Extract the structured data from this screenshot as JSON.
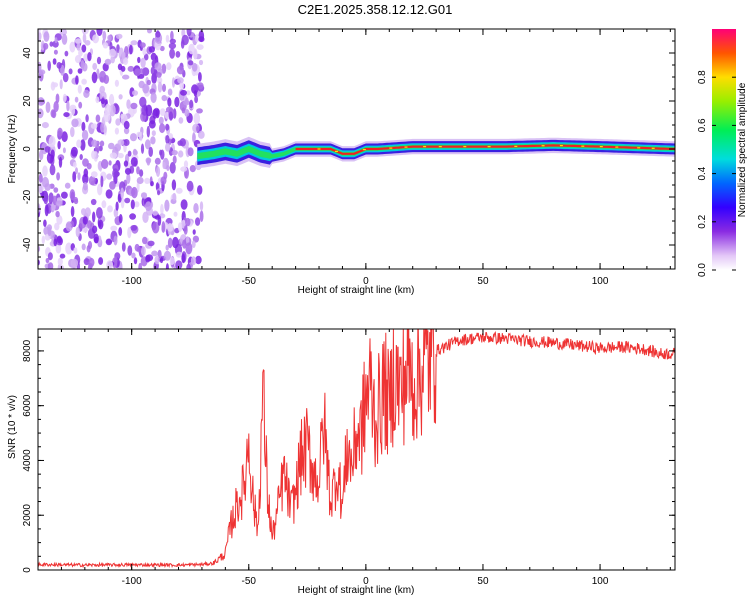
{
  "title": "C2E1.2025.358.12.12.G01",
  "chart_data": [
    {
      "type": "heatmap",
      "xlabel": "Height of straight line (km)",
      "ylabel": "Frequency (Hz)",
      "xlim": [
        -140,
        132
      ],
      "ylim": [
        -50,
        50
      ],
      "xticks": [
        -100,
        -50,
        0,
        50,
        100
      ],
      "yticks": [
        -40,
        -20,
        0,
        20,
        40
      ],
      "noise_region_x": [
        -140,
        -70
      ],
      "signal_trace": {
        "x": [
          -72,
          -65,
          -60,
          -55,
          -50,
          -45,
          -40,
          -35,
          -30,
          -25,
          -20,
          -15,
          -10,
          -5,
          0,
          5,
          20,
          40,
          60,
          80,
          100,
          132
        ],
        "freq": [
          -3,
          -2,
          -1,
          -2,
          0,
          -2,
          -3,
          -2,
          0,
          0,
          0,
          0,
          -2,
          -2,
          0,
          0,
          1,
          1,
          1,
          1.5,
          1,
          0
        ]
      },
      "colorbar": {
        "label": "Normalized spectral amplitude",
        "range": [
          0.0,
          1.0
        ],
        "ticks": [
          "0.0",
          "0.2",
          "0.4",
          "0.6",
          "0.8"
        ]
      }
    },
    {
      "type": "line",
      "xlabel": "Height of straight line (km)",
      "ylabel": "SNR (10 * v/v)",
      "xlim": [
        -140,
        132
      ],
      "ylim": [
        0,
        8800
      ],
      "xticks": [
        -100,
        -50,
        0,
        50,
        100
      ],
      "yticks": [
        0,
        2000,
        4000,
        6000,
        8000
      ],
      "color": "#ee3333",
      "series": [
        {
          "name": "SNR",
          "x": [
            -140,
            -120,
            -100,
            -80,
            -70,
            -65,
            -60,
            -58,
            -55,
            -52,
            -50,
            -48,
            -46,
            -44,
            -42,
            -40,
            -38,
            -35,
            -32,
            -30,
            -28,
            -25,
            -22,
            -20,
            -18,
            -15,
            -12,
            -10,
            -8,
            -6,
            -4,
            -2,
            0,
            2,
            4,
            6,
            8,
            10,
            12,
            15,
            18,
            20,
            25,
            30,
            35,
            40,
            50,
            60,
            70,
            80,
            90,
            100,
            110,
            120,
            125,
            132
          ],
          "y": [
            200,
            180,
            190,
            180,
            200,
            250,
            600,
            1500,
            2400,
            3000,
            4800,
            2400,
            1500,
            6500,
            2800,
            1200,
            2000,
            3500,
            2200,
            2800,
            4000,
            4500,
            3500,
            3300,
            5400,
            2500,
            3700,
            2300,
            4500,
            3800,
            5000,
            5000,
            6200,
            6800,
            5500,
            6000,
            6700,
            5800,
            7200,
            6500,
            7500,
            6800,
            7500,
            8000,
            8200,
            8400,
            8500,
            8450,
            8350,
            8300,
            8200,
            8100,
            8150,
            8050,
            7900,
            7900
          ]
        }
      ]
    }
  ]
}
